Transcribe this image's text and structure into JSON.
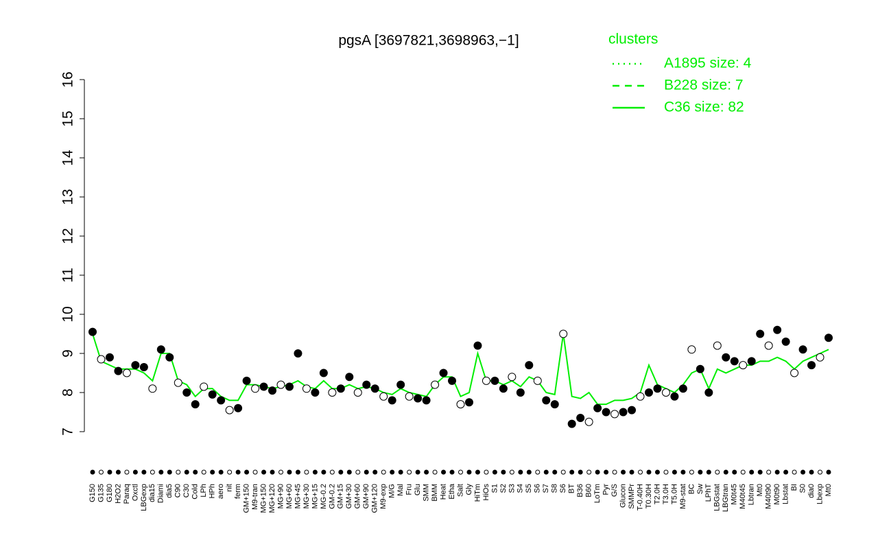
{
  "chart_data": {
    "type": "line",
    "title": "pgsA [3697821,3698963,−1]",
    "categories": [
      "G150",
      "G135",
      "G180",
      "H2O2",
      "Paraq",
      "Oxctl",
      "LBGexp",
      "dia15",
      "Diami",
      "dia5",
      "C90",
      "C30",
      "Cold",
      "LPh",
      "HPh",
      "aero",
      "nit",
      "ferm",
      "GM+150",
      "M9-tran",
      "MG+150",
      "MG+120",
      "MG+90",
      "MG+60",
      "MG+45",
      "MG+30",
      "MG+15",
      "MG-0.2",
      "GM-0.2",
      "GM+15",
      "GM+30",
      "GM+60",
      "GM+90",
      "GM+120",
      "M9-exp",
      "M/G",
      "Mal",
      "Fru",
      "Glu",
      "SMM",
      "BMM",
      "Heat",
      "Etha",
      "Salt",
      "Gly",
      "HiTm",
      "HiOs",
      "S1",
      "S2",
      "S3",
      "S4",
      "S5",
      "S6",
      "S7",
      "S8",
      "S6",
      "BT",
      "B36",
      "B60",
      "LoTm",
      "Pyr",
      "G/S",
      "Glucon",
      "SMMPr",
      "T-0.40H",
      "T0.30H",
      "T2.0H",
      "T3.0H",
      "T5.0H",
      "M9-stat",
      "BC",
      "Sw",
      "LPhT",
      "LBGstat",
      "LBGtran",
      "M0t45",
      "M40t45",
      "Lbtran",
      "Mt0",
      "M40t90",
      "M0t90",
      "Lbstat",
      "BI",
      "S0",
      "dia0",
      "Lbexp",
      "Mt0"
    ],
    "points": [
      9.55,
      8.85,
      8.9,
      8.55,
      8.5,
      8.7,
      8.65,
      8.1,
      9.1,
      8.9,
      8.25,
      8.0,
      7.7,
      8.15,
      7.95,
      7.8,
      7.55,
      7.6,
      8.3,
      8.1,
      8.15,
      8.05,
      8.2,
      8.15,
      9.0,
      8.1,
      8.0,
      8.5,
      8.0,
      8.1,
      8.4,
      8.0,
      8.2,
      8.1,
      7.9,
      7.8,
      8.2,
      7.9,
      7.85,
      7.8,
      8.2,
      8.5,
      8.3,
      7.7,
      7.75,
      9.2,
      8.3,
      8.3,
      8.1,
      8.4,
      8.0,
      8.7,
      8.3,
      7.8,
      7.7,
      9.5,
      7.2,
      7.35,
      7.25,
      7.6,
      7.5,
      7.45,
      7.5,
      7.55,
      7.9,
      8.0,
      8.1,
      8.0,
      7.9,
      8.1,
      9.1,
      8.6,
      8.0,
      9.2,
      8.9,
      8.8,
      8.7,
      8.8,
      9.5,
      9.2,
      9.6,
      9.3,
      8.5,
      9.1,
      8.7,
      8.9,
      9.4
    ],
    "series": [
      {
        "name": "C36 size: 82",
        "color": "#00ee00",
        "style": "solid",
        "values": [
          9.5,
          8.8,
          8.7,
          8.6,
          8.6,
          8.6,
          8.5,
          8.3,
          9.0,
          9.0,
          8.3,
          8.2,
          7.9,
          8.1,
          8.1,
          7.9,
          7.8,
          7.8,
          8.2,
          8.2,
          8.15,
          8.1,
          8.15,
          8.2,
          8.3,
          8.15,
          8.1,
          8.3,
          8.1,
          8.1,
          8.2,
          8.1,
          8.15,
          8.1,
          8.0,
          7.95,
          8.1,
          8.0,
          7.95,
          7.9,
          8.2,
          8.4,
          8.4,
          7.9,
          8.0,
          9.0,
          8.3,
          8.3,
          8.2,
          8.3,
          8.15,
          8.4,
          8.3,
          8.0,
          7.95,
          9.5,
          7.9,
          7.85,
          8.0,
          7.7,
          7.7,
          7.8,
          7.8,
          7.85,
          8.0,
          8.7,
          8.2,
          8.1,
          8.0,
          8.2,
          8.5,
          8.6,
          8.1,
          8.6,
          8.5,
          8.6,
          8.7,
          8.7,
          8.8,
          8.8,
          8.9,
          8.8,
          8.6,
          8.8,
          8.9,
          9.0,
          9.1
        ]
      }
    ],
    "legend_title": "clusters",
    "legend_only": [
      {
        "name": "A1895 size: 4",
        "color": "#00ee00",
        "style": "dotted"
      },
      {
        "name": "B228 size: 7",
        "color": "#00ee00",
        "style": "dashed"
      }
    ],
    "ylim": [
      7,
      16
    ],
    "yticks": [
      7,
      8,
      9,
      10,
      11,
      12,
      13,
      14,
      15,
      16
    ],
    "grid": false
  }
}
